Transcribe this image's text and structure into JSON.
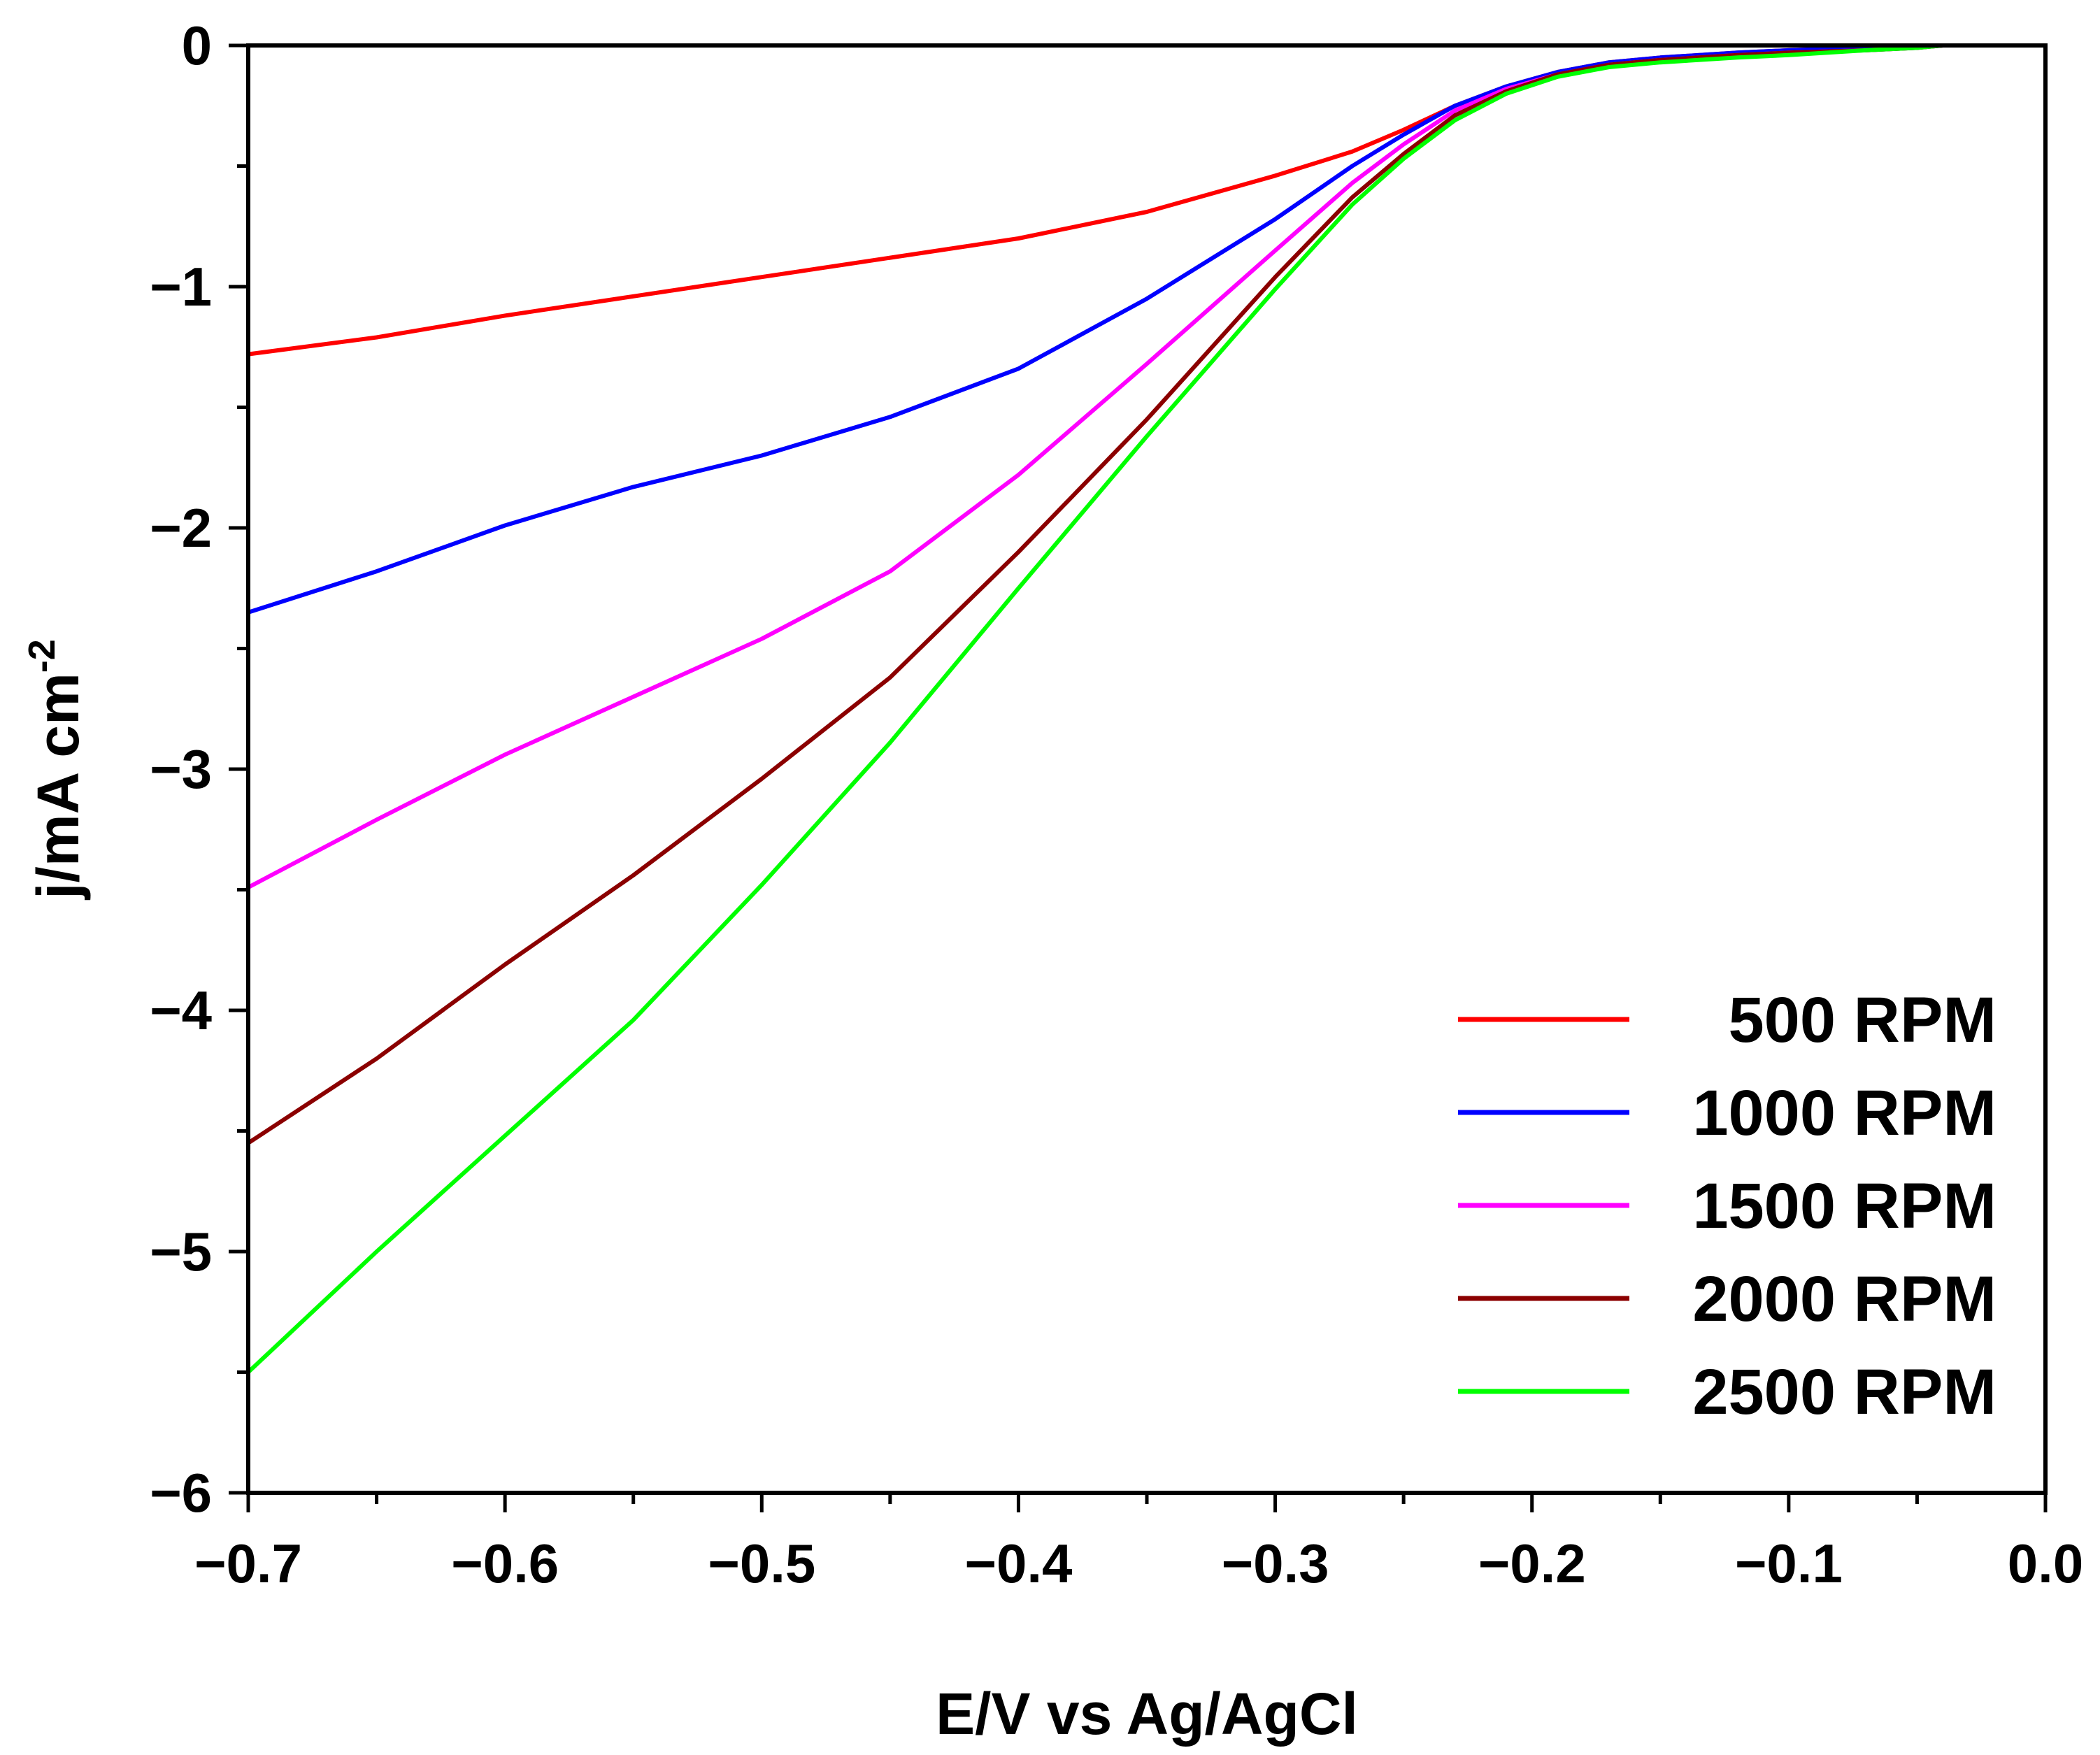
{
  "chart_data": {
    "type": "line",
    "title": "",
    "xlabel": "E/V vs Ag/AgCl",
    "ylabel": "j/mA cm",
    "ylabel_superscript": "-2",
    "xlim": [
      -0.7,
      0.0
    ],
    "ylim": [
      -6,
      0
    ],
    "x_ticks": [
      -0.7,
      -0.6,
      -0.5,
      -0.4,
      -0.3,
      -0.2,
      -0.1,
      0.0
    ],
    "x_tick_labels": [
      "−0.7",
      "−0.6",
      "−0.5",
      "−0.4",
      "−0.3",
      "−0.2",
      "−0.1",
      "0.0"
    ],
    "y_ticks": [
      0,
      -1,
      -2,
      -3,
      -4,
      -5,
      -6
    ],
    "y_tick_labels": [
      "0",
      "−1",
      "−2",
      "−3",
      "−4",
      "−5",
      "−6"
    ],
    "grid": false,
    "legend_position": "bottom-right",
    "series": [
      {
        "name": "500 RPM",
        "color": "#ff0000",
        "x": [
          -0.7,
          -0.65,
          -0.6,
          -0.55,
          -0.5,
          -0.45,
          -0.4,
          -0.35,
          -0.3,
          -0.27,
          -0.25,
          -0.23,
          -0.21,
          -0.19,
          -0.17,
          -0.15,
          -0.12,
          -0.1,
          -0.07,
          -0.05,
          -0.04
        ],
        "y": [
          -1.28,
          -1.21,
          -1.12,
          -1.04,
          -0.96,
          -0.88,
          -0.8,
          -0.69,
          -0.54,
          -0.44,
          -0.35,
          -0.25,
          -0.17,
          -0.11,
          -0.07,
          -0.05,
          -0.03,
          -0.02,
          -0.01,
          -0.005,
          0.0
        ]
      },
      {
        "name": "1000 RPM",
        "color": "#0000ff",
        "x": [
          -0.7,
          -0.65,
          -0.6,
          -0.55,
          -0.5,
          -0.45,
          -0.4,
          -0.35,
          -0.3,
          -0.27,
          -0.25,
          -0.23,
          -0.21,
          -0.19,
          -0.17,
          -0.15,
          -0.12,
          -0.1,
          -0.07,
          -0.05,
          -0.04
        ],
        "y": [
          -2.35,
          -2.18,
          -1.99,
          -1.83,
          -1.7,
          -1.54,
          -1.34,
          -1.05,
          -0.72,
          -0.5,
          -0.37,
          -0.25,
          -0.17,
          -0.11,
          -0.07,
          -0.05,
          -0.03,
          -0.02,
          -0.01,
          -0.005,
          0.0
        ]
      },
      {
        "name": "1500 RPM",
        "color": "#ff00ff",
        "x": [
          -0.7,
          -0.65,
          -0.6,
          -0.55,
          -0.5,
          -0.45,
          -0.4,
          -0.35,
          -0.3,
          -0.27,
          -0.25,
          -0.23,
          -0.21,
          -0.19,
          -0.17,
          -0.15,
          -0.12,
          -0.1,
          -0.07,
          -0.05,
          -0.04
        ],
        "y": [
          -3.49,
          -3.21,
          -2.94,
          -2.7,
          -2.46,
          -2.18,
          -1.78,
          -1.32,
          -0.85,
          -0.57,
          -0.41,
          -0.27,
          -0.18,
          -0.12,
          -0.08,
          -0.06,
          -0.04,
          -0.03,
          -0.02,
          -0.01,
          0.0
        ]
      },
      {
        "name": "2000 RPM",
        "color": "#8b0000",
        "x": [
          -0.7,
          -0.65,
          -0.6,
          -0.55,
          -0.5,
          -0.45,
          -0.4,
          -0.35,
          -0.3,
          -0.27,
          -0.25,
          -0.23,
          -0.21,
          -0.19,
          -0.17,
          -0.15,
          -0.12,
          -0.1,
          -0.07,
          -0.05,
          -0.04
        ],
        "y": [
          -4.55,
          -4.2,
          -3.81,
          -3.44,
          -3.04,
          -2.62,
          -2.1,
          -1.55,
          -0.96,
          -0.63,
          -0.45,
          -0.29,
          -0.19,
          -0.12,
          -0.08,
          -0.06,
          -0.04,
          -0.03,
          -0.02,
          -0.01,
          0.0
        ]
      },
      {
        "name": "2500 RPM",
        "color": "#00ff00",
        "x": [
          -0.7,
          -0.65,
          -0.6,
          -0.55,
          -0.5,
          -0.45,
          -0.4,
          -0.35,
          -0.3,
          -0.27,
          -0.25,
          -0.23,
          -0.21,
          -0.19,
          -0.17,
          -0.15,
          -0.12,
          -0.1,
          -0.07,
          -0.05,
          -0.04
        ],
        "y": [
          -5.5,
          -5.0,
          -4.52,
          -4.04,
          -3.48,
          -2.89,
          -2.25,
          -1.62,
          -1.01,
          -0.66,
          -0.47,
          -0.31,
          -0.2,
          -0.13,
          -0.09,
          -0.07,
          -0.05,
          -0.04,
          -0.02,
          -0.01,
          0.0
        ]
      }
    ]
  }
}
